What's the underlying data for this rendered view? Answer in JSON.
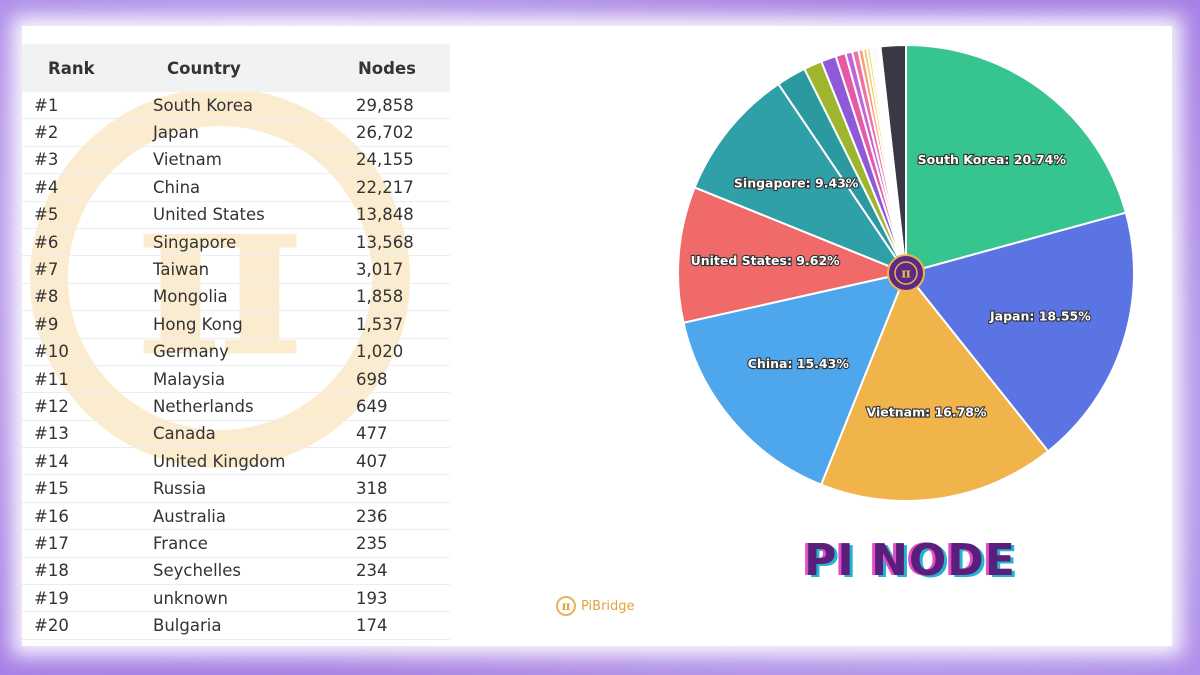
{
  "table": {
    "headers": {
      "rank": "Rank",
      "country": "Country",
      "nodes": "Nodes"
    },
    "rows": [
      {
        "rank": "#1",
        "country": "South Korea",
        "nodes": "29,858"
      },
      {
        "rank": "#2",
        "country": "Japan",
        "nodes": "26,702"
      },
      {
        "rank": "#3",
        "country": "Vietnam",
        "nodes": "24,155"
      },
      {
        "rank": "#4",
        "country": "China",
        "nodes": "22,217"
      },
      {
        "rank": "#5",
        "country": "United States",
        "nodes": "13,848"
      },
      {
        "rank": "#6",
        "country": "Singapore",
        "nodes": "13,568"
      },
      {
        "rank": "#7",
        "country": "Taiwan",
        "nodes": "3,017"
      },
      {
        "rank": "#8",
        "country": "Mongolia",
        "nodes": "1,858"
      },
      {
        "rank": "#9",
        "country": "Hong Kong",
        "nodes": "1,537"
      },
      {
        "rank": "#10",
        "country": "Germany",
        "nodes": "1,020"
      },
      {
        "rank": "#11",
        "country": "Malaysia",
        "nodes": "698"
      },
      {
        "rank": "#12",
        "country": "Netherlands",
        "nodes": "649"
      },
      {
        "rank": "#13",
        "country": "Canada",
        "nodes": "477"
      },
      {
        "rank": "#14",
        "country": "United Kingdom",
        "nodes": "407"
      },
      {
        "rank": "#15",
        "country": "Russia",
        "nodes": "318"
      },
      {
        "rank": "#16",
        "country": "Australia",
        "nodes": "236"
      },
      {
        "rank": "#17",
        "country": "France",
        "nodes": "235"
      },
      {
        "rank": "#18",
        "country": "Seychelles",
        "nodes": "234"
      },
      {
        "rank": "#19",
        "country": "unknown",
        "nodes": "193"
      },
      {
        "rank": "#20",
        "country": "Bulgaria",
        "nodes": "174"
      }
    ]
  },
  "chart_data": {
    "type": "pie",
    "title": "PI NODE",
    "slices": [
      {
        "label": "South Korea: 20.74%",
        "value": 20.74,
        "color": "#36c48f"
      },
      {
        "label": "Japan: 18.55%",
        "value": 18.55,
        "color": "#5b74e4"
      },
      {
        "label": "Vietnam: 16.78%",
        "value": 16.78,
        "color": "#f0b44a"
      },
      {
        "label": "China: 15.43%",
        "value": 15.43,
        "color": "#4ea6ec"
      },
      {
        "label": "United States: 9.62%",
        "value": 9.62,
        "color": "#f06a6a"
      },
      {
        "label": "Singapore: 9.43%",
        "value": 9.43,
        "color": "#2f9fa8"
      },
      {
        "label": "",
        "value": 2.1,
        "color": "#2a9aa0"
      },
      {
        "label": "",
        "value": 1.29,
        "color": "#a0b52e"
      },
      {
        "label": "",
        "value": 1.07,
        "color": "#8e5ad8"
      },
      {
        "label": "",
        "value": 0.71,
        "color": "#e659a6"
      },
      {
        "label": "",
        "value": 0.48,
        "color": "#c065d8"
      },
      {
        "label": "",
        "value": 0.45,
        "color": "#f26fa3"
      },
      {
        "label": "",
        "value": 0.33,
        "color": "#f59e6b"
      },
      {
        "label": "",
        "value": 0.28,
        "color": "#f7c86b"
      },
      {
        "label": "",
        "value": 0.22,
        "color": "#e7d55c"
      },
      {
        "label": "",
        "value": 0.16,
        "color": "#b8e0e8"
      },
      {
        "label": "",
        "value": 0.16,
        "color": "#f3b1c8"
      },
      {
        "label": "",
        "value": 0.16,
        "color": "#c8c8c8"
      },
      {
        "label": "",
        "value": 0.13,
        "color": "#d8c8f0"
      },
      {
        "label": "",
        "value": 0.12,
        "color": "#e8e2c8"
      },
      {
        "label": "",
        "value": 1.79,
        "color": "#3a3845"
      }
    ]
  },
  "branding": {
    "title": "PI NODE",
    "watermark_symbol": "π",
    "logo_symbol": "π",
    "logo_text": "PiBridge"
  }
}
